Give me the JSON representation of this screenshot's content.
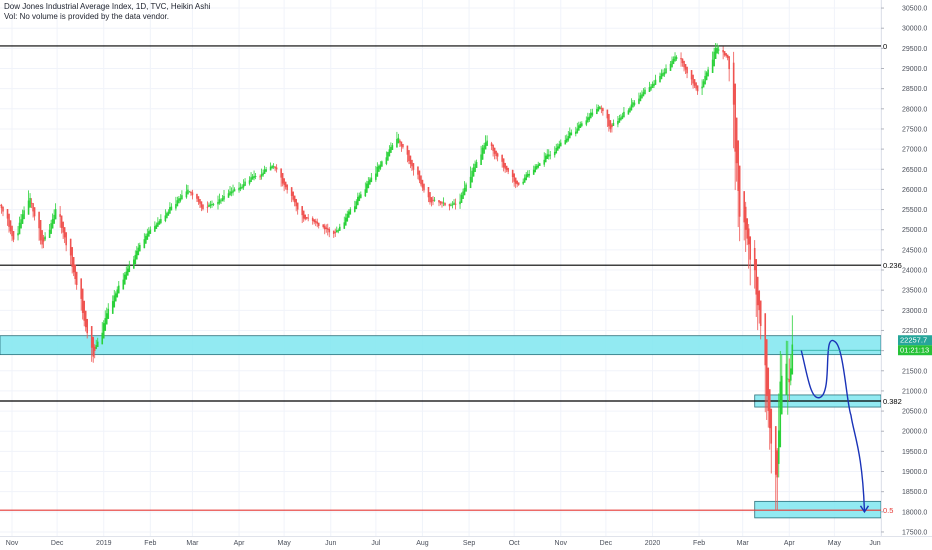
{
  "header": {
    "title": "Dow Jones Industrial Average Index, 1D, TVC, Heikin Ashi",
    "volume_note": "Vol: No volume is provided by the data vendor."
  },
  "colors": {
    "up": "#26a69a",
    "up_bright": "#2bd13a",
    "down": "#ef5350",
    "zone_fill": "#7fe6f0",
    "zone_stroke": "#2a6f7a",
    "fib_line": "#000000",
    "fib_line_half": "#e53935",
    "projection": "#1a33b8",
    "price_badge": "#26a69a",
    "countdown_badge": "#26c238"
  },
  "chart_data": {
    "type": "candlestick",
    "style": "Heikin Ashi",
    "timeframe": "1D",
    "x_tick_labels": [
      "Nov",
      "Dec",
      "2019",
      "Feb",
      "Mar",
      "Apr",
      "May",
      "Jun",
      "Jul",
      "Aug",
      "Sep",
      "Oct",
      "Nov",
      "Dec",
      "2020",
      "Feb",
      "Mar",
      "Apr",
      "May",
      "Jun"
    ],
    "y_tick_labels": [
      "30500.0",
      "30000.0",
      "29500.0",
      "29000.0",
      "28500.0",
      "28000.0",
      "27500.0",
      "27000.0",
      "26500.0",
      "26000.0",
      "25500.0",
      "25000.0",
      "24500.0",
      "24000.0",
      "23500.0",
      "23000.0",
      "22500.0",
      "22000.0",
      "21500.0",
      "21000.0",
      "20500.0",
      "20000.0",
      "19500.0",
      "19000.0",
      "18500.0",
      "18000.0",
      "17500.0"
    ],
    "y_range": [
      17400,
      30700
    ],
    "grid": true,
    "price_path": [
      {
        "date": "2018-10-24",
        "close": 25600
      },
      {
        "date": "2018-11-02",
        "close": 24700
      },
      {
        "date": "2018-11-12",
        "close": 25900
      },
      {
        "date": "2018-11-20",
        "close": 24600
      },
      {
        "date": "2018-11-30",
        "close": 25500
      },
      {
        "date": "2018-12-10",
        "close": 24200
      },
      {
        "date": "2018-12-24",
        "close": 21800
      },
      {
        "date": "2019-01-04",
        "close": 23100
      },
      {
        "date": "2019-01-25",
        "close": 24700
      },
      {
        "date": "2019-02-25",
        "close": 26000
      },
      {
        "date": "2019-03-08",
        "close": 25500
      },
      {
        "date": "2019-04-23",
        "close": 26600
      },
      {
        "date": "2019-05-13",
        "close": 25300
      },
      {
        "date": "2019-06-03",
        "close": 24900
      },
      {
        "date": "2019-07-15",
        "close": 27300
      },
      {
        "date": "2019-08-05",
        "close": 25700
      },
      {
        "date": "2019-08-23",
        "close": 25600
      },
      {
        "date": "2019-09-12",
        "close": 27200
      },
      {
        "date": "2019-10-02",
        "close": 26100
      },
      {
        "date": "2019-11-27",
        "close": 28100
      },
      {
        "date": "2019-12-03",
        "close": 27500
      },
      {
        "date": "2020-01-17",
        "close": 29300
      },
      {
        "date": "2020-01-31",
        "close": 28400
      },
      {
        "date": "2020-02-12",
        "close": 29550
      },
      {
        "date": "2020-02-20",
        "close": 29200
      },
      {
        "date": "2020-02-28",
        "close": 25400
      },
      {
        "date": "2020-03-09",
        "close": 23800
      },
      {
        "date": "2020-03-23",
        "close": 18600
      },
      {
        "date": "2020-03-26",
        "close": 21600
      },
      {
        "date": "2020-04-01",
        "close": 21200
      },
      {
        "date": "2020-04-03",
        "close": 22257.7
      }
    ],
    "last_price_label": "22257.7",
    "countdown_label": "01:21:13",
    "fib_levels": [
      {
        "label": "0",
        "price": 29560,
        "color": "#000000"
      },
      {
        "label": "0.236",
        "price": 24120,
        "color": "#000000"
      },
      {
        "label": "0.382",
        "price": 20750,
        "color": "#000000"
      },
      {
        "label": "0.5",
        "price": 18040,
        "color": "#e53935"
      }
    ],
    "zones": [
      {
        "from_date": "2018-10-24",
        "to_date": "2020-06-01",
        "low": 21900,
        "high": 22370
      },
      {
        "from_date": "2020-03-09",
        "to_date": "2020-06-01",
        "low": 20600,
        "high": 20900
      },
      {
        "from_date": "2020-03-09",
        "to_date": "2020-06-01",
        "low": 17850,
        "high": 18260
      }
    ],
    "projection": [
      {
        "date": "2020-04-09",
        "price": 22000
      },
      {
        "date": "2020-04-22",
        "price": 20850
      },
      {
        "date": "2020-05-02",
        "price": 22200
      },
      {
        "date": "2020-05-12",
        "price": 20400
      },
      {
        "date": "2020-05-21",
        "price": 18000
      }
    ]
  }
}
